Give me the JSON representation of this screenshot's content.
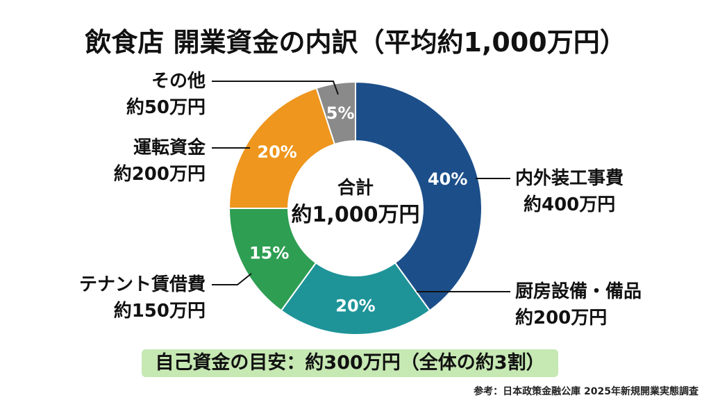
{
  "title": "飲食店 開業資金の内訳（平均約1,000万円）",
  "center": {
    "line1": "合計",
    "line2": "約1,000万円"
  },
  "note": "自己資金の目安：約300万円（全体の約3割）",
  "source": "参考：日本政策金融公庫 2025年新規開業実態調査",
  "segments": [
    {
      "name": "内外装工事費",
      "amount": "約400万円",
      "pct_label": "40%",
      "color": "#1c4f8a"
    },
    {
      "name": "厨房設備・備品",
      "amount": "約200万円",
      "pct_label": "20%",
      "color": "#1e9499"
    },
    {
      "name": "テナント賃借費",
      "amount": "約150万円",
      "pct_label": "15%",
      "color": "#2e9e53"
    },
    {
      "name": "運転資金",
      "amount": "約200万円",
      "pct_label": "20%",
      "color": "#ee961d"
    },
    {
      "name": "その他",
      "amount": "約50万円",
      "pct_label": "5%",
      "color": "#8a8a8a"
    }
  ],
  "chart_data": {
    "type": "pie",
    "variant": "donut",
    "title": "飲食店 開業資金の内訳（平均約1,000万円）",
    "categories": [
      "内外装工事費",
      "厨房設備・備品",
      "テナント賃借費",
      "運転資金",
      "その他"
    ],
    "values": [
      40,
      20,
      15,
      20,
      5
    ],
    "amounts_man_yen": [
      400,
      200,
      150,
      200,
      50
    ],
    "unit": "%",
    "total_label": "合計 約1,000万円",
    "colors": [
      "#1c4f8a",
      "#1e9499",
      "#2e9e53",
      "#ee961d",
      "#8a8a8a"
    ],
    "start_angle": "12 o'clock, clockwise",
    "legend": "callout labels with leader lines",
    "annotation": "自己資金の目安：約300万円（全体の約3割）",
    "source": "参考：日本政策金融公庫 2025年新規開業実態調査"
  }
}
